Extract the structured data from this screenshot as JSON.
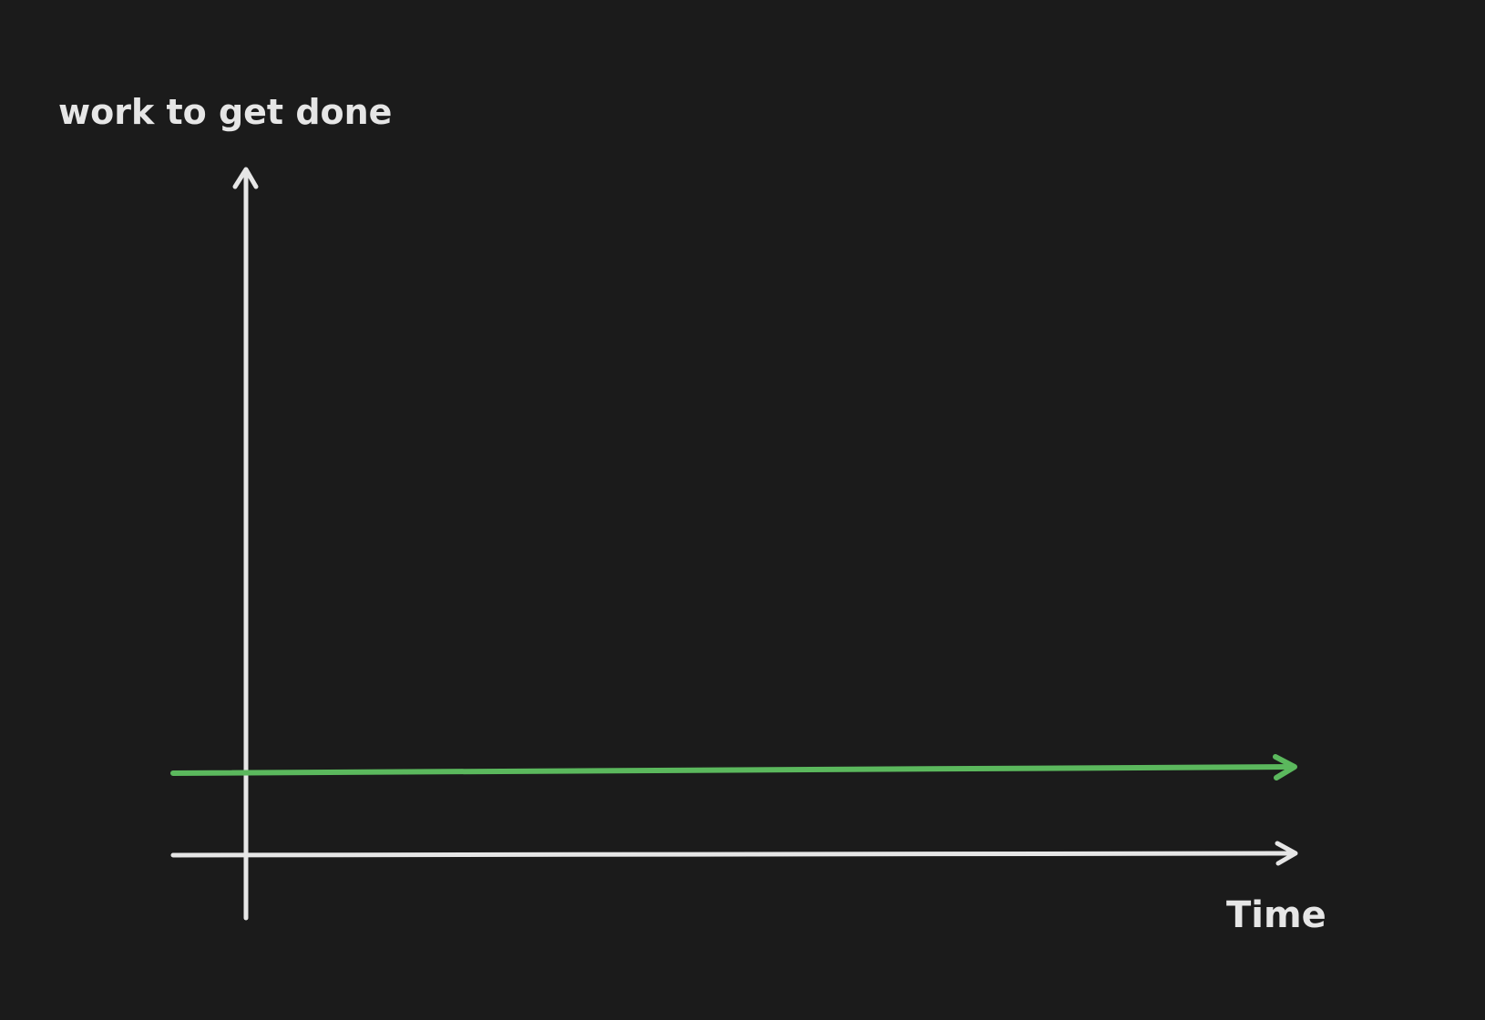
{
  "diagram": {
    "y_axis_label": "work to get done",
    "x_axis_label": "Time"
  },
  "colors": {
    "background": "#1b1b1b",
    "axis": "#e6e6e6",
    "level_line": "#5bb85d",
    "text": "#e6e6e6"
  },
  "icons": {
    "y_axis_head": "arrow-up-icon",
    "x_axis_head": "arrow-right-icon",
    "level_line_head": "arrow-right-icon"
  }
}
